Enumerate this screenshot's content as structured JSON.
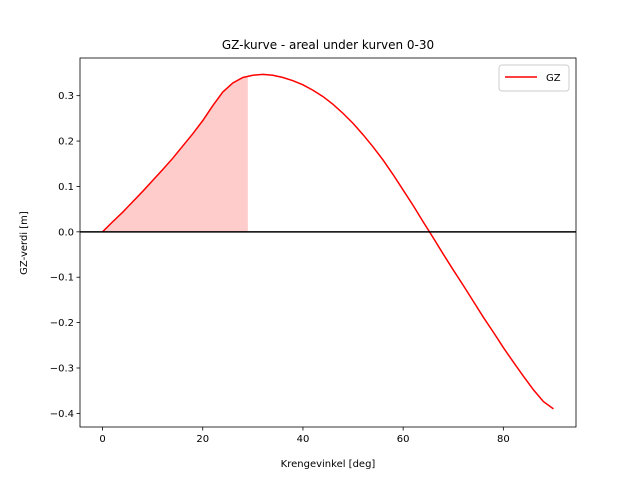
{
  "chart_data": {
    "type": "line",
    "title": "GZ-kurve - areal under kurven 0-30",
    "xlabel": "Krengevinkel [deg]",
    "ylabel": "GZ-verdi [m]",
    "xlim": [
      -4.5,
      94.5
    ],
    "ylim": [
      -0.43,
      0.383
    ],
    "xticks": [
      0,
      20,
      40,
      60,
      80
    ],
    "yticks": [
      -0.4,
      -0.3,
      -0.2,
      -0.1,
      0.0,
      0.1,
      0.2,
      0.3
    ],
    "ytick_labels": [
      "−0.4",
      "−0.3",
      "−0.2",
      "−0.1",
      "0.0",
      "0.1",
      "0.2",
      "0.3"
    ],
    "xtick_labels": [
      "0",
      "20",
      "40",
      "60",
      "80"
    ],
    "grid": false,
    "legend_position": "top-right",
    "hline": {
      "y": 0,
      "color": "#000000"
    },
    "series": [
      {
        "name": "GZ",
        "color": "#ff0000",
        "x": [
          0,
          2,
          4,
          6,
          8,
          10,
          12,
          14,
          16,
          18,
          20,
          22,
          24,
          26,
          28,
          30,
          32,
          34,
          36,
          38,
          40,
          42,
          44,
          46,
          48,
          50,
          52,
          54,
          56,
          58,
          60,
          62,
          64,
          66,
          68,
          70,
          72,
          74,
          76,
          78,
          80,
          82,
          84,
          86,
          88,
          90
        ],
        "y": [
          0.0,
          0.022,
          0.043,
          0.066,
          0.089,
          0.113,
          0.137,
          0.162,
          0.189,
          0.216,
          0.245,
          0.278,
          0.308,
          0.328,
          0.34,
          0.345,
          0.347,
          0.345,
          0.34,
          0.333,
          0.324,
          0.312,
          0.298,
          0.281,
          0.261,
          0.239,
          0.214,
          0.187,
          0.158,
          0.126,
          0.092,
          0.058,
          0.022,
          -0.013,
          -0.049,
          -0.084,
          -0.118,
          -0.153,
          -0.188,
          -0.221,
          -0.255,
          -0.287,
          -0.318,
          -0.348,
          -0.374,
          -0.39
        ]
      }
    ],
    "fill_between": {
      "x_start": 0,
      "x_end": 29,
      "color": "#ffcccc"
    }
  }
}
